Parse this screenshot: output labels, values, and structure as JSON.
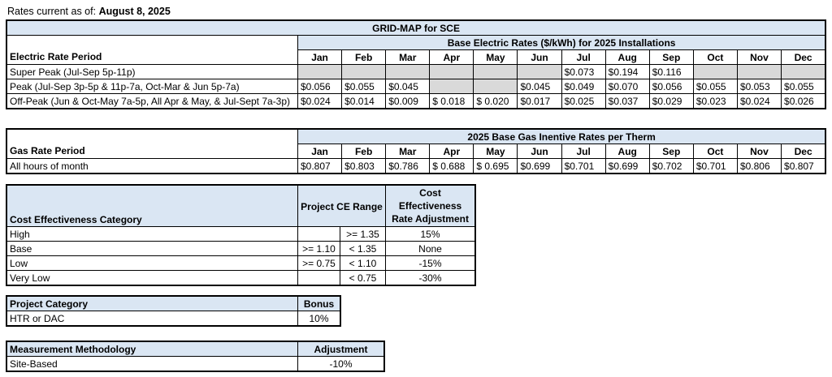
{
  "as_of": {
    "label": "Rates current as of: ",
    "date": "August 8, 2025"
  },
  "electric": {
    "title": "GRID-MAP for SCE",
    "subtitle": "Base Electric Rates ($/kWh) for 2025 Installations",
    "period_header": "Electric Rate Period",
    "months": [
      "Jan",
      "Feb",
      "Mar",
      "Apr",
      "May",
      "Jun",
      "Jul",
      "Aug",
      "Sep",
      "Oct",
      "Nov",
      "Dec"
    ],
    "rows": [
      {
        "label": "Super Peak (Jul-Sep 5p-11p)",
        "values": [
          "",
          "",
          "",
          "",
          "",
          "",
          "$0.073",
          "$0.194",
          "$0.116",
          "",
          "",
          ""
        ]
      },
      {
        "label": "Peak (Jul-Sep 3p-5p & 11p-7a, Oct-Mar & Jun 5p-7a)",
        "values": [
          "$0.056",
          "$0.055",
          "$0.045",
          "",
          "",
          "$0.045",
          "$0.049",
          "$0.070",
          "$0.056",
          "$0.055",
          "$0.053",
          "$0.055"
        ]
      },
      {
        "label": "Off-Peak (Jun & Oct-May 7a-5p, All Apr & May, & Jul-Sept 7a-3p)",
        "values": [
          "$0.024",
          "$0.014",
          "$0.009",
          "$ 0.018",
          "$ 0.020",
          "$0.017",
          "$0.025",
          "$0.037",
          "$0.029",
          "$0.023",
          "$0.024",
          "$0.026"
        ]
      }
    ]
  },
  "gas": {
    "subtitle": "2025 Base Gas Inentive Rates per Therm",
    "period_header": "Gas Rate Period",
    "months": [
      "Jan",
      "Feb",
      "Mar",
      "Apr",
      "May",
      "Jun",
      "Jul",
      "Aug",
      "Sep",
      "Oct",
      "Nov",
      "Dec"
    ],
    "rows": [
      {
        "label": "All hours of month",
        "values": [
          "$0.807",
          "$0.803",
          "$0.786",
          "$ 0.688",
          "$ 0.695",
          "$0.699",
          "$0.701",
          "$0.699",
          "$0.702",
          "$0.701",
          "$0.806",
          "$0.807"
        ]
      }
    ]
  },
  "cost_effectiveness": {
    "category_header": "Cost Effectiveness Category",
    "range_header": "Project CE Range",
    "adjustment_header": "Cost Effectiveness Rate Adjustment",
    "rows": [
      {
        "category": "High",
        "min": "",
        "max": ">= 1.35",
        "adjustment": "15%"
      },
      {
        "category": "Base",
        "min": ">= 1.10",
        "max": "< 1.35",
        "adjustment": "None"
      },
      {
        "category": "Low",
        "min": ">= 0.75",
        "max": "< 1.10",
        "adjustment": "-15%"
      },
      {
        "category": "Very Low",
        "min": "",
        "max": "< 0.75",
        "adjustment": "-30%"
      }
    ]
  },
  "project_category": {
    "header": "Project Category",
    "bonus_header": "Bonus",
    "rows": [
      {
        "category": "HTR or DAC",
        "bonus": "10%"
      }
    ]
  },
  "measurement": {
    "header": "Measurement Methodology",
    "adjustment_header": "Adjustment",
    "rows": [
      {
        "method": "Site-Based",
        "adjustment": "-10%"
      }
    ]
  }
}
